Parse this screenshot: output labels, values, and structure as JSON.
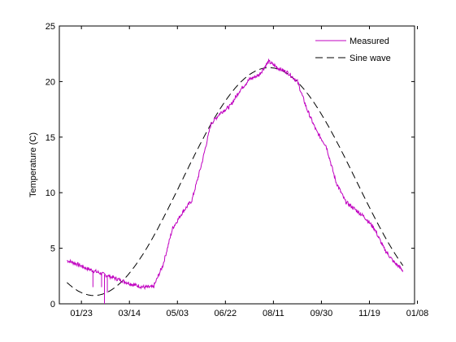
{
  "chart_data": {
    "type": "line",
    "title": "",
    "xlabel": "",
    "ylabel": "Temperature (C)",
    "xlim_days": [
      0,
      370
    ],
    "ylim": [
      0,
      25
    ],
    "yticks": [
      0,
      5,
      10,
      15,
      20,
      25
    ],
    "x_tick_labels": [
      "01/23",
      "03/14",
      "05/03",
      "06/22",
      "08/11",
      "09/30",
      "11/19",
      "01/08"
    ],
    "grid": false,
    "legend_position": "top-right",
    "series": [
      {
        "name": "Measured",
        "color": "#c000c0",
        "style": "solid",
        "x_dates": [
          "01/08",
          "01/18",
          "01/28",
          "02/07",
          "02/17",
          "02/27",
          "03/09",
          "03/19",
          "03/29",
          "04/08",
          "04/18",
          "04/28",
          "05/08",
          "05/18",
          "05/28",
          "06/07",
          "06/17",
          "06/27",
          "07/07",
          "07/17",
          "07/27",
          "08/06",
          "08/16",
          "08/26",
          "09/05",
          "09/15",
          "09/25",
          "10/05",
          "10/15",
          "10/25",
          "11/04",
          "11/14",
          "11/24",
          "12/04",
          "12/14",
          "12/24"
        ],
        "values": [
          3.9,
          3.6,
          3.2,
          2.9,
          2.6,
          2.3,
          2.0,
          1.7,
          1.5,
          1.5,
          3.5,
          6.8,
          8.2,
          9.3,
          12.5,
          16.2,
          17.2,
          17.8,
          19.2,
          20.2,
          20.6,
          21.8,
          21.2,
          20.8,
          20.0,
          17.5,
          15.5,
          14.2,
          11.0,
          9.2,
          8.5,
          7.8,
          6.8,
          5.0,
          3.8,
          3.0
        ]
      },
      {
        "name": "Sine wave",
        "color": "#000000",
        "style": "dashed",
        "mean": 11.0,
        "amplitude": 10.25,
        "min_date": "02/05",
        "period_days": 365
      }
    ],
    "spikes": [
      {
        "x_date": "02/04",
        "y_bottom": 1.5
      },
      {
        "x_date": "02/13",
        "y_bottom": 1.5
      },
      {
        "x_date": "02/16",
        "y_bottom": 0.0
      },
      {
        "x_date": "02/19",
        "y_bottom": 1.0
      }
    ]
  }
}
